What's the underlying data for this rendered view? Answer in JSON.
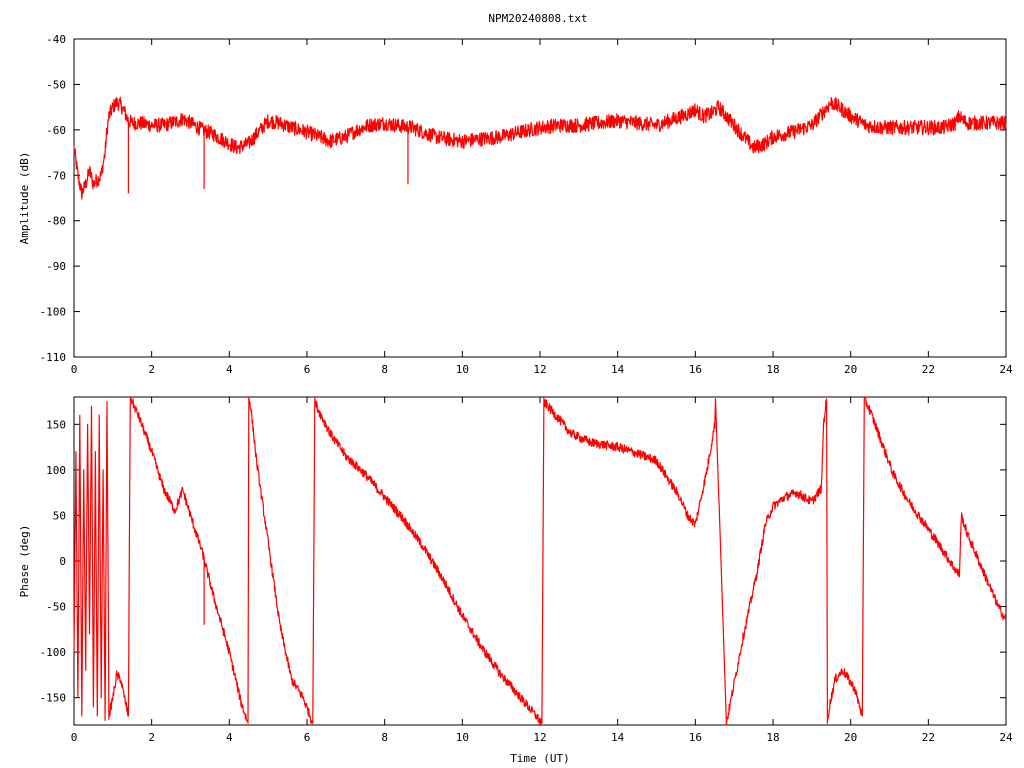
{
  "title": "NPM20240808.txt",
  "colors": {
    "trace": "#ff0000",
    "frame": "#000000",
    "background": "#ffffff"
  },
  "chart_data": [
    {
      "type": "line",
      "title": "NPM20240808.txt",
      "xlabel": "",
      "ylabel": "Amplitude (dB)",
      "xlim": [
        0,
        24
      ],
      "ylim": [
        -110,
        -40
      ],
      "xticks": [
        "0",
        "2",
        "4",
        "6",
        "8",
        "10",
        "12",
        "14",
        "16",
        "18",
        "20",
        "22",
        "24"
      ],
      "yticks": [
        "-40",
        "-50",
        "-60",
        "-70",
        "-80",
        "-90",
        "-100",
        "-110"
      ],
      "grid": false,
      "series": [
        {
          "x": [
            0,
            0.1,
            0.2,
            0.3,
            0.4,
            0.5,
            0.6,
            0.7,
            0.8,
            0.85,
            0.9,
            1.0,
            1.1,
            1.2,
            1.3,
            1.4,
            1.5,
            1.7,
            2.0,
            2.3,
            2.5,
            2.7,
            2.8,
            3.0,
            3.3,
            3.6,
            4.0,
            4.2,
            4.5,
            4.8,
            5.0,
            5.3,
            5.6,
            6.0,
            6.3,
            6.6,
            7.0,
            7.3,
            7.6,
            8.0,
            8.3,
            8.7,
            9.0,
            9.3,
            9.6,
            10.0,
            10.5,
            11.0,
            11.5,
            12.0,
            12.5,
            13.0,
            13.5,
            14.0,
            14.5,
            15.0,
            15.5,
            15.8,
            16.0,
            16.2,
            16.4,
            16.6,
            16.8,
            17.0,
            17.2,
            17.5,
            17.8,
            18.0,
            18.5,
            19.0,
            19.2,
            19.4,
            19.5,
            19.7,
            20.0,
            20.4,
            20.8,
            21.2,
            21.6,
            22.0,
            22.4,
            22.7,
            22.8,
            22.9,
            23.0,
            23.3,
            23.6,
            24.0
          ],
          "values": [
            -64,
            -70,
            -74,
            -72,
            -69,
            -72,
            -71,
            -70,
            -65,
            -60,
            -57,
            -55,
            -54,
            -54.5,
            -56,
            -58,
            -58.5,
            -58.5,
            -59,
            -59,
            -58.5,
            -58,
            -57.5,
            -58.5,
            -60,
            -61,
            -63,
            -64,
            -63,
            -60,
            -58,
            -58.5,
            -59.5,
            -60.5,
            -61.5,
            -62.5,
            -61.5,
            -60,
            -59,
            -58.5,
            -59,
            -59.5,
            -60.5,
            -61.5,
            -62,
            -62.5,
            -62,
            -61.5,
            -60.5,
            -59.5,
            -59,
            -59,
            -58.5,
            -58,
            -58.5,
            -59,
            -57.5,
            -56.5,
            -55.5,
            -57,
            -56.5,
            -55,
            -57,
            -59,
            -61,
            -64,
            -63,
            -61.5,
            -60.5,
            -59,
            -57,
            -55,
            -54,
            -55,
            -57,
            -59,
            -59.5,
            -59.5,
            -59.5,
            -59.5,
            -59.5,
            -58.5,
            -57,
            -58,
            -58.5,
            -58.5,
            -58.5,
            -58.5
          ]
        }
      ],
      "spikes": [
        {
          "x": 1.4,
          "value": -74
        },
        {
          "x": 3.35,
          "value": -73
        },
        {
          "x": 8.6,
          "value": -72
        }
      ]
    },
    {
      "type": "line",
      "title": "",
      "xlabel": "Time (UT)",
      "ylabel": "Phase (deg)",
      "xlim": [
        0,
        24
      ],
      "ylim": [
        -180,
        180
      ],
      "xticks": [
        "0",
        "2",
        "4",
        "6",
        "8",
        "10",
        "12",
        "14",
        "16",
        "18",
        "20",
        "22",
        "24"
      ],
      "yticks": [
        "150",
        "100",
        "50",
        "0",
        "-50",
        "-100",
        "-150"
      ],
      "grid": false,
      "series": [
        {
          "x": [
            0,
            0.05,
            0.1,
            0.15,
            0.2,
            0.25,
            0.3,
            0.35,
            0.4,
            0.45,
            0.5,
            0.55,
            0.6,
            0.65,
            0.7,
            0.75,
            0.8,
            0.85,
            0.9,
            1.0,
            1.1,
            1.2,
            1.3,
            1.4,
            1.45,
            1.5,
            1.7,
            2.0,
            2.3,
            2.6,
            2.8,
            3.0,
            3.3,
            3.6,
            4.0,
            4.3,
            4.48,
            4.5,
            4.55,
            4.7,
            5.0,
            5.3,
            5.6,
            5.9,
            6.15,
            6.2,
            6.3,
            6.6,
            7.0,
            7.5,
            8.0,
            8.5,
            9.0,
            9.5,
            10.0,
            10.5,
            11.0,
            11.5,
            11.8,
            12.05,
            12.1,
            12.3,
            12.8,
            13.3,
            14.0,
            14.5,
            15.0,
            15.3,
            15.6,
            15.8,
            16.0,
            16.3,
            16.5,
            16.52,
            16.8,
            17.2,
            17.6,
            17.8,
            18.0,
            18.3,
            18.6,
            19.0,
            19.25,
            19.3,
            19.38,
            19.4,
            19.45,
            19.6,
            19.8,
            20.1,
            20.3,
            20.35,
            20.5,
            20.8,
            21.1,
            21.5,
            22.0,
            22.4,
            22.7,
            22.8,
            22.85,
            23.0,
            23.3,
            23.6,
            23.8,
            24.0
          ],
          "values": [
            -100,
            120,
            -150,
            160,
            -170,
            100,
            -120,
            150,
            -80,
            170,
            -160,
            120,
            -170,
            160,
            -150,
            100,
            -175,
            175,
            -170,
            -150,
            -125,
            -130,
            -150,
            -170,
            180,
            175,
            155,
            120,
            80,
            55,
            78,
            50,
            10,
            -40,
            -100,
            -155,
            -178,
            180,
            170,
            110,
            20,
            -70,
            -130,
            -150,
            -178,
            175,
            165,
            140,
            115,
            95,
            70,
            45,
            15,
            -20,
            -60,
            -95,
            -125,
            -150,
            -165,
            -178,
            175,
            165,
            140,
            130,
            125,
            118,
            110,
            90,
            70,
            50,
            40,
            100,
            150,
            178,
            -178,
            -90,
            -10,
            40,
            60,
            70,
            75,
            65,
            80,
            150,
            178,
            -178,
            -160,
            -130,
            -120,
            -140,
            -170,
            178,
            165,
            130,
            95,
            65,
            35,
            10,
            -10,
            -15,
            50,
            30,
            0,
            -30,
            -50,
            -65
          ]
        }
      ],
      "spikes": [
        {
          "x": 3.35,
          "value": -70
        }
      ]
    }
  ]
}
